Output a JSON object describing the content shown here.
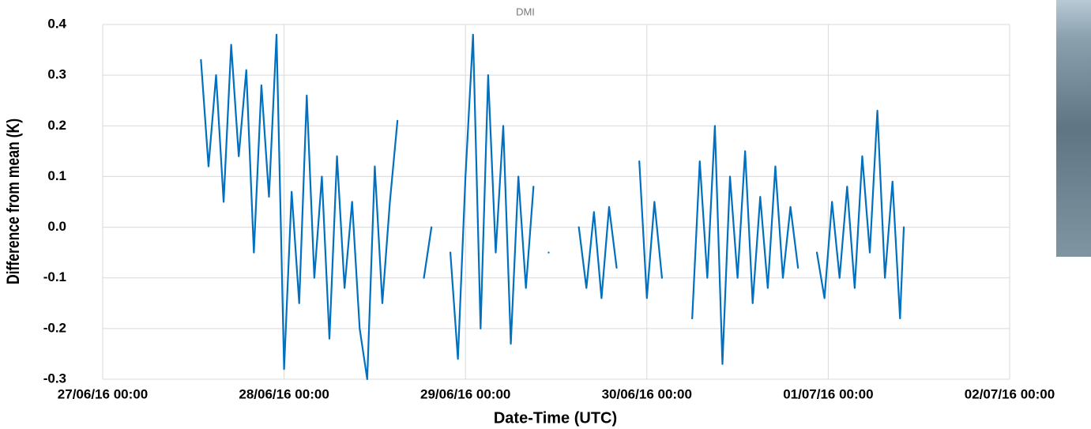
{
  "chart_data": {
    "type": "line",
    "title": "DMI",
    "x_label": "Date-Time (UTC)",
    "y_label": "Difference from mean (K)",
    "x": [
      "27/06/16 13:00",
      "27/06/16 14:00",
      "27/06/16 15:00",
      "27/06/16 16:00",
      "27/06/16 17:00",
      "27/06/16 18:00",
      "27/06/16 19:00",
      "27/06/16 20:00",
      "27/06/16 21:00",
      "27/06/16 22:00",
      "27/06/16 23:00",
      "28/06/16 00:00",
      "28/06/16 01:00",
      "28/06/16 02:00",
      "28/06/16 03:00",
      "28/06/16 04:00",
      "28/06/16 05:00",
      "28/06/16 06:00",
      "28/06/16 07:00",
      "28/06/16 08:00",
      "28/06/16 09:00",
      "28/06/16 10:00",
      "28/06/16 11:00",
      "28/06/16 12:00",
      "28/06/16 13:00",
      "28/06/16 14:00",
      "28/06/16 15:00",
      "28/06/16 16:00",
      "28/06/16 18:30",
      "28/06/16 19:30",
      "28/06/16 20:30",
      "28/06/16 22:00",
      "28/06/16 23:00",
      "29/06/16 00:00",
      "29/06/16 01:00",
      "29/06/16 02:00",
      "29/06/16 03:00",
      "29/06/16 04:00",
      "29/06/16 05:00",
      "29/06/16 06:00",
      "29/06/16 07:00",
      "29/06/16 08:00",
      "29/06/16 09:00",
      "29/06/16 10:00",
      "29/06/16 11:00",
      "29/06/16 12:00",
      "29/06/16 15:00",
      "29/06/16 16:00",
      "29/06/16 17:00",
      "29/06/16 18:00",
      "29/06/16 19:00",
      "29/06/16 20:00",
      "29/06/16 21:00",
      "29/06/16 23:00",
      "30/06/16 00:00",
      "30/06/16 01:00",
      "30/06/16 02:00",
      "30/06/16 03:00",
      "30/06/16 06:00",
      "30/06/16 07:00",
      "30/06/16 08:00",
      "30/06/16 09:00",
      "30/06/16 10:00",
      "30/06/16 11:00",
      "30/06/16 12:00",
      "30/06/16 13:00",
      "30/06/16 14:00",
      "30/06/16 15:00",
      "30/06/16 16:00",
      "30/06/16 17:00",
      "30/06/16 18:00",
      "30/06/16 19:00",
      "30/06/16 20:00",
      "30/06/16 21:00",
      "30/06/16 22:30",
      "30/06/16 23:30",
      "01/07/16 00:30",
      "01/07/16 01:30",
      "01/07/16 02:30",
      "01/07/16 03:30",
      "01/07/16 04:30",
      "01/07/16 05:30",
      "01/07/16 06:30",
      "01/07/16 07:30",
      "01/07/16 08:30",
      "01/07/16 09:30",
      "01/07/16 10:00"
    ],
    "series": [
      {
        "name": "DMI",
        "color": "#0070c0",
        "values": [
          0.33,
          0.12,
          0.3,
          0.05,
          0.36,
          0.14,
          0.31,
          -0.05,
          0.28,
          0.06,
          0.38,
          -0.28,
          0.07,
          -0.15,
          0.26,
          -0.1,
          0.1,
          -0.22,
          0.14,
          -0.12,
          0.05,
          -0.2,
          -0.3,
          0.12,
          -0.15,
          0.05,
          0.21,
          null,
          -0.1,
          0.0,
          null,
          -0.05,
          -0.26,
          0.1,
          0.38,
          -0.2,
          0.3,
          -0.05,
          0.2,
          -0.23,
          0.1,
          -0.12,
          0.08,
          null,
          -0.05,
          null,
          0.0,
          -0.12,
          0.03,
          -0.14,
          0.04,
          -0.08,
          null,
          0.13,
          -0.14,
          0.05,
          -0.1,
          null,
          -0.18,
          0.13,
          -0.1,
          0.2,
          -0.27,
          0.1,
          -0.1,
          0.15,
          -0.15,
          0.06,
          -0.12,
          0.12,
          -0.1,
          0.04,
          -0.08,
          null,
          -0.05,
          -0.14,
          0.05,
          -0.1,
          0.08,
          -0.12,
          0.14,
          -0.05,
          0.23,
          -0.1,
          0.09,
          -0.18,
          0.0
        ]
      }
    ],
    "xlim": [
      "27/06/16 00:00",
      "02/07/16 00:00"
    ],
    "xticks": [
      "27/06/16 00:00",
      "28/06/16 00:00",
      "29/06/16 00:00",
      "30/06/16 00:00",
      "01/07/16 00:00",
      "02/07/16 00:00"
    ],
    "ylim": [
      -0.3,
      0.4
    ],
    "yticks": [
      0.4,
      0.3,
      0.2,
      0.1,
      {
        "value": 0,
        "label": "0.0"
      },
      -0.1,
      -0.2,
      -0.3
    ],
    "grid": true
  }
}
